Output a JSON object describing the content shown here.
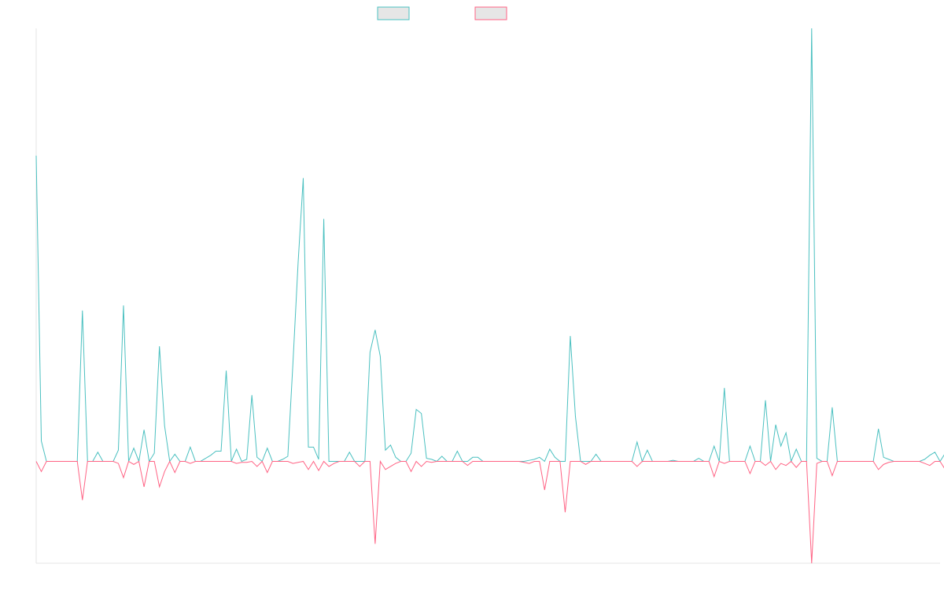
{
  "chart_data": {
    "type": "line",
    "title": "",
    "xlabel": "",
    "ylabel": "",
    "grid": false,
    "legend_position": "top-center",
    "ylim": [
      -1,
      4.25
    ],
    "x_count": 177,
    "series": [
      {
        "color": "#4bc0c0",
        "fill": "#e6e6e6",
        "values": [
          3.0,
          0.2,
          0,
          0,
          0,
          0,
          0,
          0,
          0,
          1.48,
          0,
          0,
          0.09,
          0,
          0,
          0,
          0.11,
          1.53,
          0,
          0.13,
          0,
          0.31,
          0,
          0.08,
          1.13,
          0.35,
          0,
          0.07,
          0,
          0,
          0.14,
          0,
          0,
          0.03,
          0.06,
          0.1,
          0.1,
          0.89,
          0,
          0.12,
          0,
          0.02,
          0.65,
          0.04,
          0,
          0.13,
          0,
          0,
          0.02,
          0.05,
          0.97,
          1.95,
          2.78,
          0.14,
          0.14,
          0.02,
          2.38,
          0,
          0,
          0,
          0,
          0.09,
          0,
          0,
          0,
          1.07,
          1.29,
          1.03,
          0.11,
          0.16,
          0.04,
          0,
          0,
          0.08,
          0.51,
          0.47,
          0.03,
          0.02,
          0,
          0.05,
          0,
          0,
          0.1,
          0,
          0,
          0.04,
          0.04,
          0,
          0,
          0,
          0,
          0,
          0,
          0,
          0,
          0,
          0.01,
          0.02,
          0.04,
          0,
          0.12,
          0.04,
          0,
          0,
          1.23,
          0.44,
          0,
          0,
          0,
          0.07,
          0,
          0,
          0,
          0,
          0,
          0,
          0,
          0.19,
          0,
          0.11,
          0,
          0,
          0,
          0,
          0.01,
          0,
          0,
          0,
          0,
          0.03,
          0,
          0,
          0.15,
          0,
          0.72,
          0,
          0,
          0,
          0,
          0.15,
          0,
          0,
          0.6,
          0,
          0.36,
          0.15,
          0.28,
          0,
          0.12,
          0,
          0,
          4.25,
          0.03,
          0,
          0,
          0.53,
          0,
          0,
          0,
          0,
          0,
          0,
          0,
          0,
          0.32,
          0.04,
          0.02,
          0,
          0,
          0,
          0,
          0,
          0,
          0.02,
          0.06,
          0.09,
          0,
          0.08,
          0,
          0
        ]
      },
      {
        "color": "#ff6384",
        "fill": "#e6e6e6",
        "values": [
          0,
          -0.1,
          0,
          0,
          0,
          0,
          0,
          0,
          0,
          -0.38,
          0,
          0,
          0,
          0,
          0,
          0,
          -0.02,
          -0.16,
          0,
          -0.03,
          0,
          -0.25,
          0,
          0,
          -0.25,
          -0.1,
          0,
          -0.11,
          0,
          0,
          -0.02,
          0,
          0,
          0,
          0,
          0,
          0,
          0,
          0,
          -0.02,
          -0.01,
          -0.01,
          0,
          -0.05,
          0,
          -0.11,
          0,
          0,
          0,
          0,
          -0.02,
          -0.01,
          0,
          -0.08,
          0,
          -0.09,
          0,
          -0.05,
          -0.02,
          0,
          0,
          0,
          0,
          -0.05,
          0,
          0,
          -0.81,
          0,
          -0.08,
          -0.05,
          -0.02,
          0,
          0,
          -0.1,
          0,
          -0.05,
          0,
          -0.01,
          0,
          0,
          0,
          0,
          0,
          0,
          -0.04,
          0,
          0,
          0,
          0,
          0,
          0,
          0,
          0,
          0,
          0,
          -0.01,
          -0.02,
          0,
          0,
          -0.28,
          0,
          0,
          0,
          -0.5,
          0,
          0,
          0,
          -0.03,
          0,
          0,
          0,
          0,
          0,
          0,
          0,
          0,
          0,
          -0.05,
          0,
          0,
          0,
          0,
          0,
          0,
          0,
          0,
          0,
          0,
          0,
          0,
          0,
          0,
          -0.15,
          0,
          -0.02,
          0,
          0,
          0,
          0,
          -0.12,
          0,
          0,
          -0.04,
          0,
          -0.08,
          -0.02,
          -0.04,
          0,
          -0.06,
          0,
          0,
          -1.0,
          -0.02,
          0,
          0,
          -0.14,
          0,
          0,
          0,
          0,
          0,
          0,
          0,
          0,
          -0.08,
          -0.03,
          -0.01,
          0,
          0,
          0,
          0,
          0,
          0,
          -0.02,
          -0.04,
          0,
          0,
          -0.08,
          0,
          0
        ]
      }
    ]
  }
}
